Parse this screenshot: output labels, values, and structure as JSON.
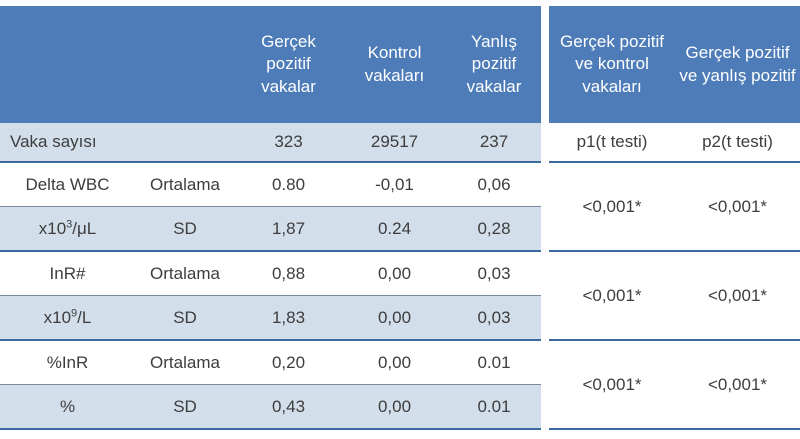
{
  "colors": {
    "header_bg": "#4e7cb8",
    "row_alt_bg": "#d3deeb",
    "border_strong": "#3a6aa0",
    "border_thin": "#7b8b9d",
    "header_text": "#ffffff",
    "body_text": "#3d3d3d"
  },
  "header": {
    "col_true_positive": "Gerçek pozitif vakalar",
    "col_control": "Kontrol vakaları",
    "col_false_positive": "Yanlış pozitif vakalar",
    "col_tp_vs_control": "Gerçek pozitif ve kontrol vakaları",
    "col_tp_vs_fp": "Gerçek pozitif ve yanlış pozitif"
  },
  "case_count_row": {
    "label": "Vaka sayısı",
    "true_positive": "323",
    "control": "29517",
    "false_positive": "237",
    "p1": "p1(t testi)",
    "p2": "p2(t testi)"
  },
  "groups": [
    {
      "parameter": "Delta WBC",
      "unit": {
        "base": "x10",
        "sup": "3",
        "rest": "/μL"
      },
      "mean_label": "Ortalama",
      "sd_label": "SD",
      "mean": {
        "true_positive": "0.80",
        "control": "-0,01",
        "false_positive": "0,06"
      },
      "sd": {
        "true_positive": "1,87",
        "control": "0.24",
        "false_positive": "0,28"
      },
      "p1": "<0,001*",
      "p2": "<0,001*"
    },
    {
      "parameter": "InR#",
      "unit": {
        "base": "x10",
        "sup": "9",
        "rest": "/L"
      },
      "mean_label": "Ortalama",
      "sd_label": "SD",
      "mean": {
        "true_positive": "0,88",
        "control": "0,00",
        "false_positive": "0,03"
      },
      "sd": {
        "true_positive": "1,83",
        "control": "0,00",
        "false_positive": "0,03"
      },
      "p1": "<0,001*",
      "p2": "<0,001*"
    },
    {
      "parameter": "%InR",
      "unit": {
        "base": "%",
        "sup": "",
        "rest": ""
      },
      "mean_label": "Ortalama",
      "sd_label": "SD",
      "mean": {
        "true_positive": "0,20",
        "control": "0,00",
        "false_positive": "0.01"
      },
      "sd": {
        "true_positive": "0,43",
        "control": "0,00",
        "false_positive": "0.01"
      },
      "p1": "<0,001*",
      "p2": "<0,001*"
    }
  ]
}
